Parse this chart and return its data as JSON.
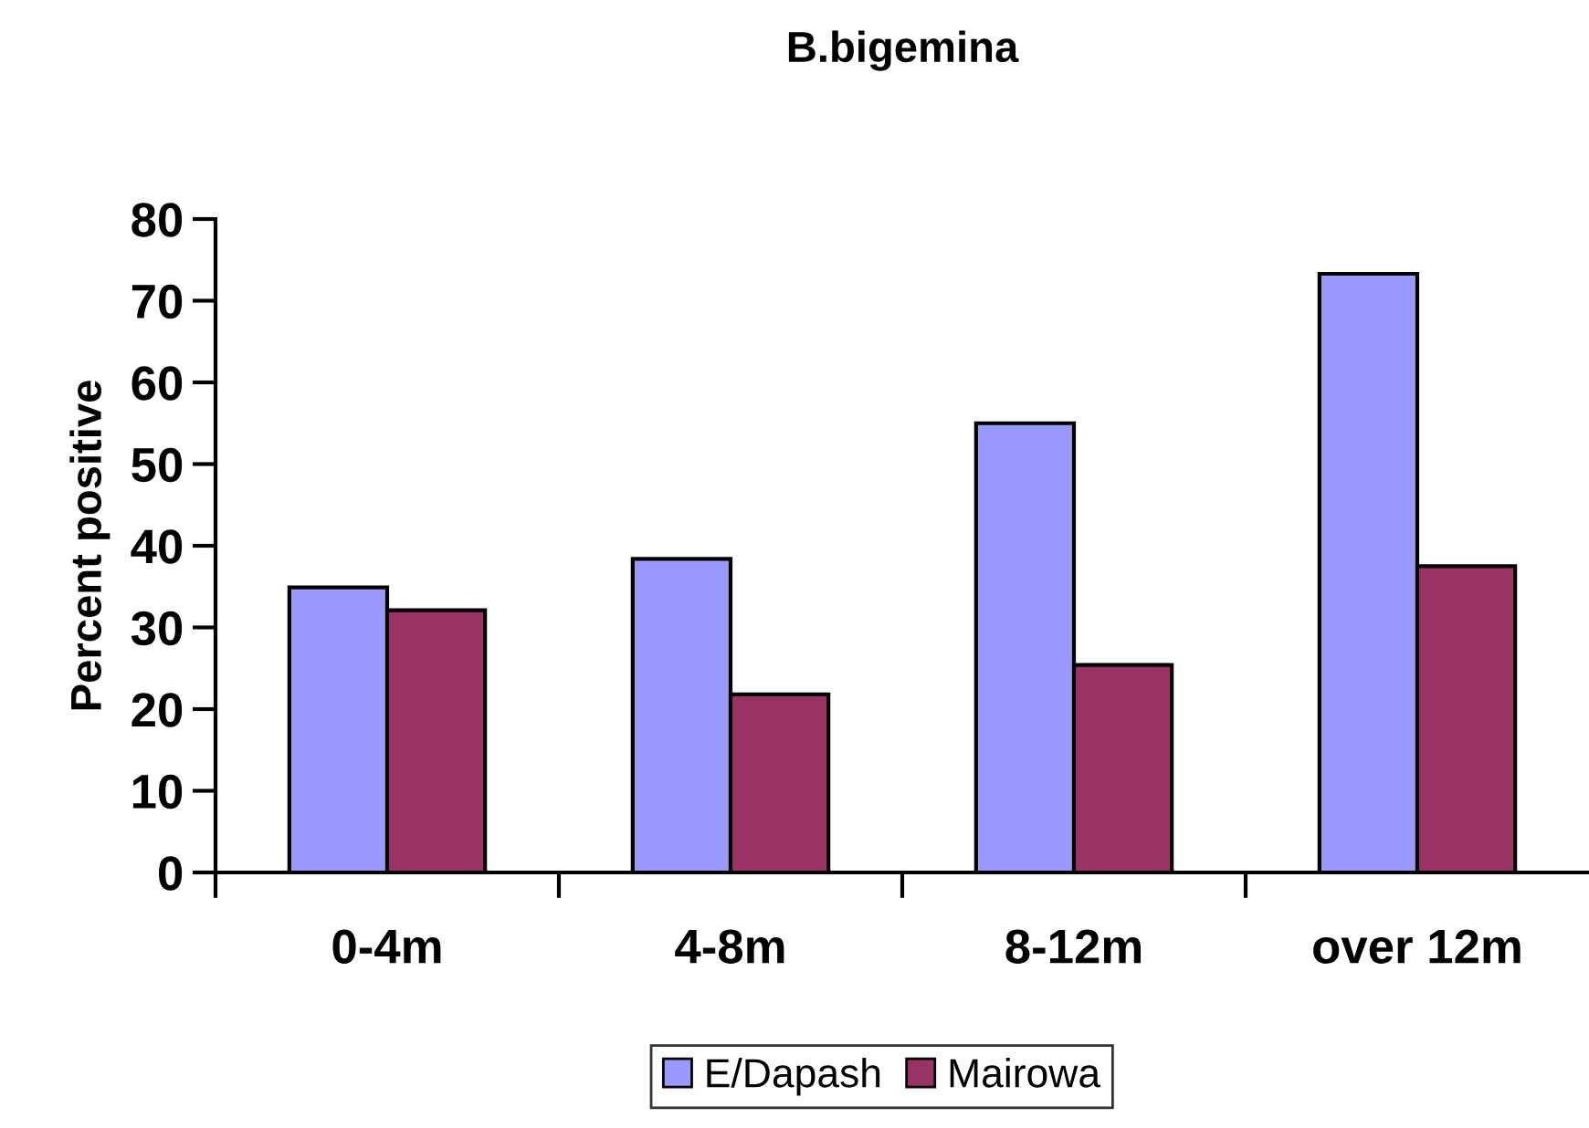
{
  "chart_data": {
    "type": "bar",
    "title": "B.bigemina",
    "ylabel": "Percent positive",
    "categories": [
      "0-4m",
      "4-8m",
      "8-12m",
      "over 12m"
    ],
    "series": [
      {
        "name": "E/Dapash",
        "color": "#9999ff",
        "values": [
          34.9,
          38.4,
          55.0,
          73.3
        ]
      },
      {
        "name": "Mairowa",
        "color": "#993366",
        "values": [
          32.1,
          21.8,
          25.4,
          37.5
        ]
      }
    ],
    "ylim": [
      0,
      80
    ],
    "yticks": [
      0,
      10,
      20,
      30,
      40,
      50,
      60,
      70,
      80
    ],
    "grid": false,
    "legend": "bottom"
  }
}
